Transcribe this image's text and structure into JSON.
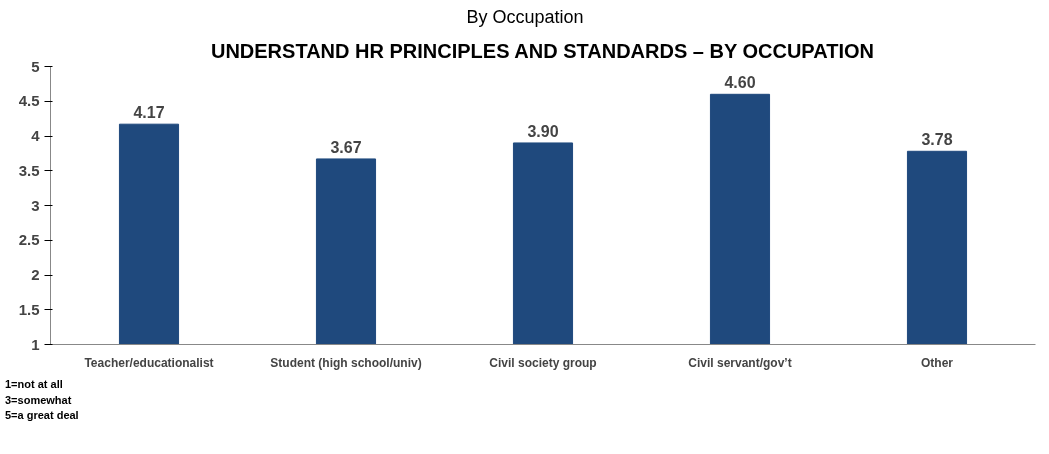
{
  "chart_data": {
    "type": "bar",
    "title": "UNDERSTAND HR PRINCIPLES AND STANDARDS – BY OCCUPATION",
    "subtitle": "By Occupation",
    "categories": [
      "Teacher/educationalist",
      "Student (high school/univ)",
      "Civil society group",
      "Civil servant/gov’t",
      "Other"
    ],
    "values": [
      4.17,
      3.67,
      3.9,
      4.6,
      3.78
    ],
    "value_labels": [
      "4.17",
      "3.67",
      "3.90",
      "4.60",
      "3.78"
    ],
    "color": "#1f497d",
    "ylim": [
      1,
      5
    ],
    "yticks": [
      1,
      1.5,
      2,
      2.5,
      3,
      3.5,
      4,
      4.5,
      5
    ],
    "grid": false,
    "annotations": [
      "1=not at all",
      "3=somewhat",
      "5=a great deal"
    ]
  }
}
